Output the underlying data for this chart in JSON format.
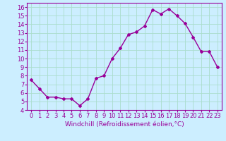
{
  "x": [
    0,
    1,
    2,
    3,
    4,
    5,
    6,
    7,
    8,
    9,
    10,
    11,
    12,
    13,
    14,
    15,
    16,
    17,
    18,
    19,
    20,
    21,
    22,
    23
  ],
  "y": [
    7.5,
    6.5,
    5.5,
    5.5,
    5.3,
    5.3,
    4.5,
    5.3,
    7.7,
    8.0,
    10.0,
    11.2,
    12.8,
    13.1,
    13.8,
    15.7,
    15.2,
    15.8,
    15.0,
    14.1,
    12.5,
    10.8,
    10.8,
    9.0
  ],
  "line_color": "#990099",
  "marker": "D",
  "marker_size": 2.0,
  "bg_color": "#cceeff",
  "grid_color": "#aaddcc",
  "xlabel": "Windchill (Refroidissement éolien,°C)",
  "ylim": [
    4,
    16.5
  ],
  "xlim": [
    -0.5,
    23.5
  ],
  "yticks": [
    4,
    5,
    6,
    7,
    8,
    9,
    10,
    11,
    12,
    13,
    14,
    15,
    16
  ],
  "xticks": [
    0,
    1,
    2,
    3,
    4,
    5,
    6,
    7,
    8,
    9,
    10,
    11,
    12,
    13,
    14,
    15,
    16,
    17,
    18,
    19,
    20,
    21,
    22,
    23
  ],
  "axis_color": "#990099",
  "tick_color": "#990099",
  "xlabel_color": "#990099",
  "xlabel_fontsize": 6.5,
  "tick_fontsize": 6.0,
  "line_width": 1.0
}
